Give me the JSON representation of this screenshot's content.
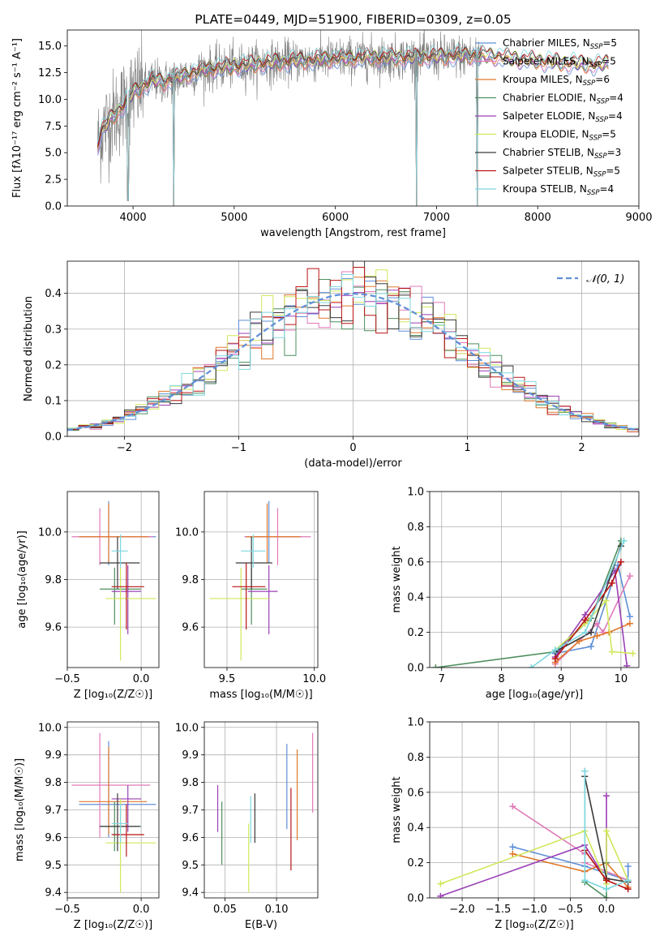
{
  "colors": {
    "Chabrier MILES": "#5f8fd8",
    "Salpeter MILES": "#e07ab8",
    "Kroupa MILES": "#e0782a",
    "Chabrier ELODIE": "#4f8f5f",
    "Salpeter ELODIE": "#9b3fb5",
    "Kroupa ELODIE": "#d0e85a",
    "Chabrier STELIB": "#3a3a3a",
    "Salpeter STELIB": "#b81414",
    "Kroupa STELIB": "#7dd8e0",
    "data": "#808080",
    "normal": "#5f8fd8"
  },
  "legend_spectrum": [
    {
      "name": "Chabrier MILES",
      "label": "Chabrier MILES, N",
      "sub": "SSP",
      "eq": "=5"
    },
    {
      "name": "Salpeter MILES",
      "label": "Salpeter MILES, N",
      "sub": "SSP",
      "eq": "=5"
    },
    {
      "name": "Kroupa MILES",
      "label": "Kroupa MILES, N",
      "sub": "SSP",
      "eq": "=6"
    },
    {
      "name": "Chabrier ELODIE",
      "label": "Chabrier ELODIE, N",
      "sub": "SSP",
      "eq": "=4"
    },
    {
      "name": "Salpeter ELODIE",
      "label": "Salpeter ELODIE, N",
      "sub": "SSP",
      "eq": "=4"
    },
    {
      "name": "Kroupa ELODIE",
      "label": "Kroupa ELODIE, N",
      "sub": "SSP",
      "eq": "=5"
    },
    {
      "name": "Chabrier STELIB",
      "label": "Chabrier STELIB, N",
      "sub": "SSP",
      "eq": "=3"
    },
    {
      "name": "Salpeter STELIB",
      "label": "Salpeter STELIB, N",
      "sub": "SSP",
      "eq": "=5"
    },
    {
      "name": "Kroupa STELIB",
      "label": "Kroupa STELIB, N",
      "sub": "SSP",
      "eq": "=4"
    }
  ],
  "legend_hist": {
    "label": "𝒩(0, 1)"
  },
  "chart_data": [
    {
      "id": "spectrum",
      "type": "line",
      "title": "PLATE=0449, MJD=51900, FIBERID=0309, z=0.05",
      "xlabel": "wavelength [Angstrom, rest frame]",
      "ylabel": "Flux [fλ10⁻¹⁷ erg cm⁻² s⁻¹ A⁻¹]",
      "xlim": [
        3350,
        9000
      ],
      "ylim": [
        0,
        16.5
      ],
      "xticks": [
        4000,
        5000,
        6000,
        7000,
        8000,
        9000
      ],
      "xtick_labels": [
        "4000",
        "5000",
        "6000",
        "7000",
        "8000",
        "9000"
      ],
      "yticks": [
        0,
        2.5,
        5,
        7.5,
        10,
        12.5,
        15
      ],
      "ytick_labels": [
        "0.0",
        "2.5",
        "5.0",
        "7.5",
        "10.0",
        "12.5",
        "15.0"
      ],
      "grid": false,
      "legend_position": "right",
      "continuum": {
        "x": [
          3650,
          3700,
          3800,
          3900,
          4000,
          4100,
          4200,
          4300,
          4500,
          4700,
          5000,
          5300,
          5600,
          6000,
          6300,
          6600,
          7000,
          7300,
          7500,
          7700,
          8000,
          8300,
          8600,
          8700
        ],
        "y": [
          5.8,
          7.2,
          8.4,
          9.4,
          10.6,
          11.2,
          11.8,
          11.6,
          12.2,
          12.8,
          13.1,
          13.4,
          13.6,
          13.8,
          13.9,
          13.9,
          14.0,
          14.1,
          14.1,
          13.9,
          13.6,
          13.4,
          13.2,
          13.4
        ]
      },
      "notable_dips": [
        {
          "x": 4400,
          "y": 0
        },
        {
          "x": 3950,
          "y": 0.5
        },
        {
          "x": 6800,
          "y": 0
        },
        {
          "x": 7400,
          "y": 0
        }
      ]
    },
    {
      "id": "residuals",
      "type": "line",
      "xlabel": "(data-model)/error",
      "ylabel": "Normed distribution",
      "xlim": [
        -2.5,
        2.5
      ],
      "ylim": [
        0,
        0.49
      ],
      "xticks": [
        -2,
        -1,
        0,
        1,
        2
      ],
      "xtick_labels": [
        "−2",
        "−1",
        "0",
        "1",
        "2"
      ],
      "yticks": [
        0,
        0.1,
        0.2,
        0.3,
        0.4
      ],
      "ytick_labels": [
        "0.0",
        "0.1",
        "0.2",
        "0.3",
        "0.4"
      ],
      "grid": true,
      "legend_position": "top-right",
      "bin_width": 0.1,
      "series": [
        {
          "name": "𝒩(0, 1)",
          "style": "dashed",
          "function": "normal(0,1)"
        }
      ]
    },
    {
      "id": "age_vs_Z",
      "type": "scatter",
      "style": "errorbar",
      "xlabel": "Z [log₁₀(Z/Z☉)]",
      "ylabel": "age  [log₁₀(age/yr)]",
      "xlim": [
        -0.5,
        0.12
      ],
      "ylim": [
        9.43,
        10.17
      ],
      "xticks": [
        -0.5,
        0
      ],
      "xtick_labels": [
        "−0.5",
        "0.0"
      ],
      "yticks": [
        9.6,
        9.8,
        10.0
      ],
      "ytick_labels": [
        "9.6",
        "9.8",
        "10.0"
      ],
      "grid": true,
      "points": [
        {
          "series": "Chabrier MILES",
          "x": -0.22,
          "xlo": -0.42,
          "xhi": 0.1,
          "y": 9.98,
          "ylo": 9.86,
          "yhi": 10.13
        },
        {
          "series": "Salpeter MILES",
          "x": -0.28,
          "xlo": -0.47,
          "xhi": 0.08,
          "y": 9.98,
          "ylo": 9.86,
          "yhi": 10.1
        },
        {
          "series": "Kroupa MILES",
          "x": -0.22,
          "xlo": -0.42,
          "xhi": 0.05,
          "y": 9.98,
          "ylo": 9.87,
          "yhi": 10.12
        },
        {
          "series": "Chabrier ELODIE",
          "x": -0.18,
          "xlo": -0.28,
          "xhi": 0.0,
          "y": 9.76,
          "ylo": 9.61,
          "yhi": 9.85
        },
        {
          "series": "Salpeter ELODIE",
          "x": -0.09,
          "xlo": -0.2,
          "xhi": 0.0,
          "y": 9.75,
          "ylo": 9.57,
          "yhi": 9.86
        },
        {
          "series": "Kroupa ELODIE",
          "x": -0.14,
          "xlo": -0.24,
          "xhi": 0.1,
          "y": 9.72,
          "ylo": 9.46,
          "yhi": 9.85
        },
        {
          "series": "Chabrier STELIB",
          "x": -0.16,
          "xlo": -0.28,
          "xhi": -0.01,
          "y": 9.87,
          "ylo": 9.76,
          "yhi": 9.98
        },
        {
          "series": "Salpeter STELIB",
          "x": -0.1,
          "xlo": -0.2,
          "xhi": 0.02,
          "y": 9.77,
          "ylo": 9.59,
          "yhi": 9.87
        },
        {
          "series": "Kroupa STELIB",
          "x": -0.14,
          "xlo": -0.2,
          "xhi": -0.09,
          "y": 9.92,
          "ylo": 9.85,
          "yhi": 9.99
        }
      ]
    },
    {
      "id": "age_vs_mass",
      "type": "scatter",
      "style": "errorbar",
      "xlabel": "mass [log₁₀(M/M☉)]",
      "ylabel": "",
      "xlim": [
        9.37,
        10.02
      ],
      "ylim": [
        9.43,
        10.17
      ],
      "xticks": [
        9.5,
        10.0
      ],
      "xtick_labels": [
        "9.5",
        "10.0"
      ],
      "yticks": [
        9.6,
        9.8,
        10.0
      ],
      "ytick_labels": [
        "9.6",
        "9.8",
        "10.0"
      ],
      "grid": true,
      "points": [
        {
          "series": "Chabrier MILES",
          "x": 9.74,
          "xlo": 9.6,
          "xhi": 9.93,
          "y": 9.98,
          "ylo": 9.87,
          "yhi": 10.13
        },
        {
          "series": "Salpeter MILES",
          "x": 9.79,
          "xlo": 9.6,
          "xhi": 9.98,
          "y": 9.98,
          "ylo": 9.86,
          "yhi": 10.1
        },
        {
          "series": "Kroupa MILES",
          "x": 9.73,
          "xlo": 9.61,
          "xhi": 9.92,
          "y": 9.98,
          "ylo": 9.87,
          "yhi": 10.12
        },
        {
          "series": "Chabrier ELODIE",
          "x": 9.64,
          "xlo": 9.58,
          "xhi": 9.73,
          "y": 9.76,
          "ylo": 9.61,
          "yhi": 9.85
        },
        {
          "series": "Salpeter ELODIE",
          "x": 9.74,
          "xlo": 9.62,
          "xhi": 9.79,
          "y": 9.75,
          "ylo": 9.57,
          "yhi": 9.86
        },
        {
          "series": "Kroupa ELODIE",
          "x": 9.58,
          "xlo": 9.4,
          "xhi": 9.74,
          "y": 9.72,
          "ylo": 9.46,
          "yhi": 9.85
        },
        {
          "series": "Chabrier STELIB",
          "x": 9.64,
          "xlo": 9.55,
          "xhi": 9.76,
          "y": 9.87,
          "ylo": 9.76,
          "yhi": 9.98
        },
        {
          "series": "Salpeter STELIB",
          "x": 9.61,
          "xlo": 9.53,
          "xhi": 9.72,
          "y": 9.77,
          "ylo": 9.59,
          "yhi": 9.87
        },
        {
          "series": "Kroupa STELIB",
          "x": 9.65,
          "xlo": 9.58,
          "xhi": 9.72,
          "y": 9.92,
          "ylo": 9.85,
          "yhi": 9.99
        }
      ]
    },
    {
      "id": "weight_vs_age",
      "type": "line",
      "style": "markers",
      "xlabel": "age  [log₁₀(age/yr)]",
      "ylabel": "mass weight",
      "xlim": [
        6.8,
        10.3
      ],
      "ylim": [
        0,
        1
      ],
      "xticks": [
        7,
        8,
        9,
        10
      ],
      "xtick_labels": [
        "7",
        "8",
        "9",
        "10"
      ],
      "yticks": [
        0,
        0.2,
        0.4,
        0.6,
        0.8,
        1.0
      ],
      "ytick_labels": [
        "0.0",
        "0.2",
        "0.4",
        "0.6",
        "0.8",
        "1.0"
      ],
      "grid": true,
      "series": [
        {
          "name": "Chabrier MILES",
          "x": [
            8.9,
            9.5,
            9.95,
            10.15
          ],
          "y": [
            0.08,
            0.12,
            0.58,
            0.29
          ]
        },
        {
          "name": "Salpeter MILES",
          "x": [
            8.9,
            9.6,
            9.7,
            10.15
          ],
          "y": [
            0.02,
            0.25,
            0.2,
            0.52
          ]
        },
        {
          "name": "Kroupa MILES",
          "x": [
            8.9,
            9.3,
            9.6,
            9.8,
            10.15
          ],
          "y": [
            0.03,
            0.15,
            0.18,
            0.2,
            0.25
          ]
        },
        {
          "name": "Chabrier ELODIE",
          "x": [
            6.9,
            8.9,
            9.5,
            10.0
          ],
          "y": [
            0.0,
            0.09,
            0.28,
            0.72
          ]
        },
        {
          "name": "Salpeter ELODIE",
          "x": [
            8.9,
            9.4,
            9.9,
            10.1
          ],
          "y": [
            0.06,
            0.3,
            0.55,
            0.01
          ]
        },
        {
          "name": "Kroupa ELODIE",
          "x": [
            8.9,
            9.4,
            9.75,
            9.85,
            10.2
          ],
          "y": [
            0.1,
            0.25,
            0.38,
            0.09,
            0.08
          ]
        },
        {
          "name": "Chabrier STELIB",
          "x": [
            8.9,
            9.5,
            10.0
          ],
          "y": [
            0.09,
            0.2,
            0.69
          ]
        },
        {
          "name": "Salpeter STELIB",
          "x": [
            8.9,
            9.4,
            9.85,
            10.0
          ],
          "y": [
            0.05,
            0.27,
            0.48,
            0.6
          ]
        },
        {
          "name": "Kroupa STELIB",
          "x": [
            8.5,
            8.9,
            9.4,
            10.05
          ],
          "y": [
            0.0,
            0.1,
            0.2,
            0.72
          ]
        }
      ]
    },
    {
      "id": "mass_vs_Z",
      "type": "scatter",
      "style": "errorbar",
      "xlabel": "Z [log₁₀(Z/Z☉)]",
      "ylabel": "mass [log₁₀(M/M☉)]",
      "xlim": [
        -0.5,
        0.12
      ],
      "ylim": [
        9.38,
        10.02
      ],
      "xticks": [
        -0.5,
        0
      ],
      "xtick_labels": [
        "−0.5",
        "0.0"
      ],
      "yticks": [
        9.4,
        9.5,
        9.6,
        9.7,
        9.8,
        9.9,
        10.0
      ],
      "ytick_labels": [
        "9.4",
        "9.5",
        "9.6",
        "9.7",
        "9.8",
        "9.9",
        "10.0"
      ],
      "grid": true,
      "points": [
        {
          "series": "Chabrier MILES",
          "x": -0.22,
          "xlo": -0.42,
          "xhi": 0.1,
          "y": 9.72,
          "ylo": 9.6,
          "yhi": 9.95
        },
        {
          "series": "Salpeter MILES",
          "x": -0.28,
          "xlo": -0.47,
          "xhi": 0.06,
          "y": 9.79,
          "ylo": 9.6,
          "yhi": 9.98
        },
        {
          "series": "Kroupa MILES",
          "x": -0.22,
          "xlo": -0.42,
          "xhi": 0.04,
          "y": 9.73,
          "ylo": 9.61,
          "yhi": 9.93
        },
        {
          "series": "Chabrier ELODIE",
          "x": -0.18,
          "xlo": -0.28,
          "xhi": 0.0,
          "y": 9.64,
          "ylo": 9.55,
          "yhi": 9.73
        },
        {
          "series": "Salpeter ELODIE",
          "x": -0.09,
          "xlo": -0.2,
          "xhi": 0.0,
          "y": 9.74,
          "ylo": 9.62,
          "yhi": 9.79
        },
        {
          "series": "Kroupa ELODIE",
          "x": -0.14,
          "xlo": -0.24,
          "xhi": 0.1,
          "y": 9.58,
          "ylo": 9.4,
          "yhi": 9.74
        },
        {
          "series": "Chabrier STELIB",
          "x": -0.16,
          "xlo": -0.28,
          "xhi": -0.01,
          "y": 9.64,
          "ylo": 9.55,
          "yhi": 9.76
        },
        {
          "series": "Salpeter STELIB",
          "x": -0.1,
          "xlo": -0.2,
          "xhi": 0.02,
          "y": 9.61,
          "ylo": 9.53,
          "yhi": 9.72
        },
        {
          "series": "Kroupa STELIB",
          "x": -0.14,
          "xlo": -0.2,
          "xhi": -0.09,
          "y": 9.65,
          "ylo": 9.58,
          "yhi": 9.72
        }
      ]
    },
    {
      "id": "mass_vs_ebv",
      "type": "scatter",
      "style": "errorbar",
      "xlabel": "E(B-V)",
      "ylabel": "",
      "xlim": [
        0.03,
        0.14
      ],
      "ylim": [
        9.38,
        10.02
      ],
      "xticks": [
        0.05,
        0.1
      ],
      "xtick_labels": [
        "0.05",
        "0.10"
      ],
      "yticks": [
        9.4,
        9.5,
        9.6,
        9.7,
        9.8,
        9.9,
        10.0
      ],
      "ytick_labels": [
        "9.4",
        "9.5",
        "9.6",
        "9.7",
        "9.8",
        "9.9",
        "10.0"
      ],
      "grid": true,
      "points": [
        {
          "series": "Chabrier MILES",
          "x": 0.11,
          "y": 9.78,
          "ylo": 9.63,
          "yhi": 9.94
        },
        {
          "series": "Salpeter MILES",
          "x": 0.135,
          "y": 9.84,
          "ylo": 9.69,
          "yhi": 9.98
        },
        {
          "series": "Kroupa MILES",
          "x": 0.12,
          "y": 9.75,
          "ylo": 9.59,
          "yhi": 9.92
        },
        {
          "series": "Chabrier ELODIE",
          "x": 0.047,
          "y": 9.61,
          "ylo": 9.5,
          "yhi": 9.73
        },
        {
          "series": "Salpeter ELODIE",
          "x": 0.043,
          "y": 9.7,
          "ylo": 9.62,
          "yhi": 9.79
        },
        {
          "series": "Kroupa ELODIE",
          "x": 0.073,
          "y": 9.53,
          "ylo": 9.4,
          "yhi": 9.65
        },
        {
          "series": "Chabrier STELIB",
          "x": 0.079,
          "y": 9.67,
          "ylo": 9.58,
          "yhi": 9.76
        },
        {
          "series": "Salpeter STELIB",
          "x": 0.114,
          "y": 9.62,
          "ylo": 9.48,
          "yhi": 9.78
        },
        {
          "series": "Kroupa STELIB",
          "x": 0.075,
          "y": 9.66,
          "ylo": 9.58,
          "yhi": 9.75
        }
      ]
    },
    {
      "id": "weight_vs_Z",
      "type": "line",
      "style": "markers",
      "xlabel": "Z [log₁₀(Z/Z☉)]",
      "ylabel": "mass weight",
      "xlim": [
        -2.45,
        0.45
      ],
      "ylim": [
        0,
        1
      ],
      "xticks": [
        -2,
        -1.5,
        -1,
        -0.5,
        0
      ],
      "xtick_labels": [
        "−2.0",
        "−1.5",
        "−1.0",
        "−0.5",
        "0.0"
      ],
      "yticks": [
        0,
        0.2,
        0.4,
        0.6,
        0.8,
        1.0
      ],
      "ytick_labels": [
        "0.0",
        "0.2",
        "0.4",
        "0.6",
        "0.8",
        "1.0"
      ],
      "grid": true,
      "series": [
        {
          "name": "Chabrier MILES",
          "x": [
            -1.3,
            -0.3,
            0.3,
            0.3
          ],
          "y": [
            0.29,
            0.18,
            0.1,
            0.18
          ]
        },
        {
          "name": "Salpeter MILES",
          "x": [
            -1.3,
            -0.3,
            -0.3,
            0.3
          ],
          "y": [
            0.52,
            0.25,
            0.2,
            0.1
          ]
        },
        {
          "name": "Kroupa MILES",
          "x": [
            -1.3,
            -0.3,
            0.0,
            0.3
          ],
          "y": [
            0.25,
            0.15,
            0.2,
            0.06
          ]
        },
        {
          "name": "Chabrier ELODIE",
          "x": [
            -0.3,
            -0.3,
            0.0,
            0.0
          ],
          "y": [
            0.72,
            0.09,
            0.0,
            0.2
          ]
        },
        {
          "name": "Salpeter ELODIE",
          "x": [
            -2.3,
            -0.3,
            0.0,
            0.0
          ],
          "y": [
            0.01,
            0.3,
            0.1,
            0.58
          ]
        },
        {
          "name": "Kroupa ELODIE",
          "x": [
            -2.3,
            -0.3,
            0.0,
            0.0,
            0.3
          ],
          "y": [
            0.08,
            0.38,
            0.08,
            0.38,
            0.1
          ]
        },
        {
          "name": "Chabrier STELIB",
          "x": [
            -0.3,
            0.0,
            0.3
          ],
          "y": [
            0.69,
            0.11,
            0.09
          ]
        },
        {
          "name": "Salpeter STELIB",
          "x": [
            -0.3,
            0.0,
            0.3
          ],
          "y": [
            0.27,
            0.1,
            0.05
          ]
        },
        {
          "name": "Kroupa STELIB",
          "x": [
            -0.3,
            -0.3,
            0.0,
            0.3
          ],
          "y": [
            0.72,
            0.1,
            0.05,
            0.1
          ]
        }
      ]
    }
  ]
}
